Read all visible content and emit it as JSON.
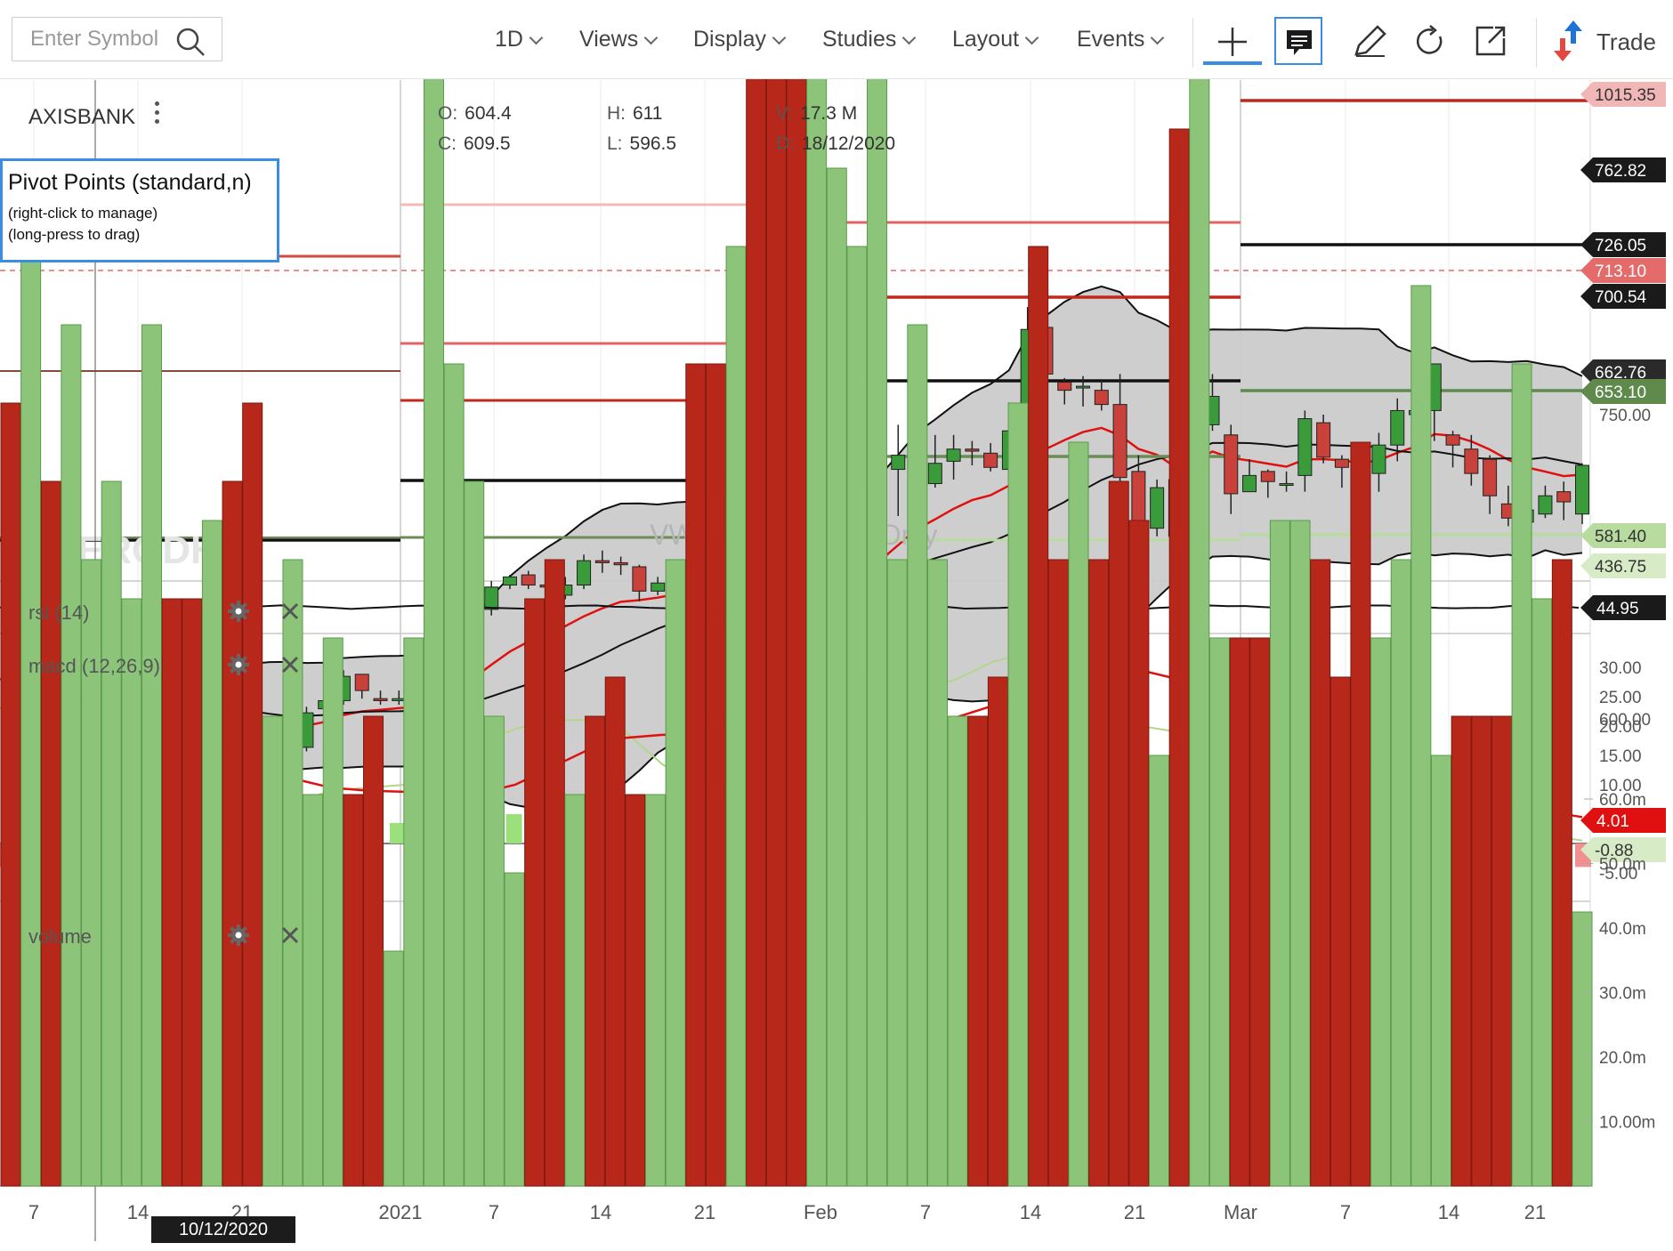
{
  "toolbar": {
    "search_placeholder": "Enter Symbol",
    "menus": [
      "1D",
      "Views",
      "Display",
      "Studies",
      "Layout",
      "Events"
    ],
    "trade_label": "Trade"
  },
  "colors": {
    "up": "#3a9b3a",
    "down": "#c8413a",
    "band_fill": "#cbcbcb",
    "accent_blue": "#1e73d8",
    "vol_up": "#8cc57a",
    "vol_down": "#b8281a"
  },
  "chart_info": {
    "symbol": "AXISBANK",
    "open_label": "O:",
    "open": "604.4",
    "high_label": "H:",
    "high": "611",
    "vol_label": "V:",
    "volume": "17.3 M",
    "close_label": "C:",
    "close": "609.5",
    "low_label": "L:",
    "low": "596.5",
    "date_label": "D:",
    "date": "18/12/2020"
  },
  "pivot_box": {
    "title": "Pivot Points (standard,n)",
    "line1": "(right-click to manage)",
    "line2": "(long-press to drag)"
  },
  "watermark": "ZERODHA",
  "vwap_note": "VWAP is Intraday Only",
  "zoom": {
    "minus": "−",
    "plus": "+"
  },
  "crosshair_date": "10/12/2020",
  "chart_data": {
    "type": "candlestick",
    "price_axis": {
      "ticks": [
        750,
        600
      ],
      "tick_labels": [
        "750.00",
        "600.00"
      ]
    },
    "price_tags": [
      {
        "label": "1015.35",
        "color": "#f1b6b6",
        "text": "#333"
      },
      {
        "label": "762.82",
        "color": "#1a1a1a",
        "text": "#fff"
      },
      {
        "label": "726.05",
        "color": "#1a1a1a",
        "text": "#fff"
      },
      {
        "label": "713.10",
        "color": "#e56a6a",
        "text": "#fff"
      },
      {
        "label": "700.54",
        "color": "#1a1a1a",
        "text": "#fff"
      },
      {
        "label": "662.76",
        "color": "#2a2a2a",
        "text": "#fff"
      },
      {
        "label": "653.10",
        "color": "#5f8a4c",
        "text": "#fff"
      },
      {
        "label": "581.40",
        "color": "#b8dca0",
        "text": "#333"
      },
      {
        "label": "436.75",
        "color": "#d7ecc6",
        "text": "#333"
      }
    ],
    "x_labels": [
      "7",
      "14",
      "21",
      "2021",
      "7",
      "14",
      "21",
      "Feb",
      "7",
      "14",
      "21",
      "Mar",
      "7",
      "14",
      "21"
    ],
    "candles": [
      [
        608,
        604,
        612,
        602
      ],
      [
        604,
        609,
        611,
        600
      ],
      [
        606,
        604,
        609,
        600
      ],
      [
        604,
        609,
        612,
        601
      ],
      [
        609,
        617,
        618,
        606
      ],
      [
        615,
        615,
        617,
        612
      ],
      [
        615,
        605,
        616,
        600
      ],
      [
        607,
        609,
        612,
        605
      ],
      [
        604,
        606,
        609,
        600
      ],
      [
        605,
        601,
        606,
        597
      ],
      [
        601,
        600,
        607,
        598
      ],
      [
        600,
        601,
        602,
        596
      ],
      [
        601,
        593,
        603,
        590
      ],
      [
        593,
        581,
        597,
        575
      ],
      [
        581,
        584,
        587,
        576
      ],
      [
        582,
        585,
        587,
        581
      ],
      [
        586,
        603,
        606,
        584
      ],
      [
        605,
        609,
        614,
        601
      ],
      [
        609,
        621,
        624,
        607
      ],
      [
        622,
        614,
        622,
        610
      ],
      [
        610,
        609,
        614,
        607
      ],
      [
        609,
        610,
        614,
        607
      ],
      [
        610,
        610,
        613,
        606
      ],
      [
        611,
        620,
        621,
        609
      ],
      [
        620,
        648,
        654,
        615
      ],
      [
        644,
        653,
        657,
        643
      ],
      [
        654,
        665,
        668,
        651
      ],
      [
        666,
        670,
        671,
        664
      ],
      [
        671,
        666,
        673,
        664
      ],
      [
        666,
        665,
        670,
        658
      ],
      [
        661,
        666,
        670,
        659
      ],
      [
        666,
        678,
        681,
        664
      ],
      [
        678,
        677,
        683,
        672
      ],
      [
        677,
        676,
        680,
        671
      ],
      [
        675,
        663,
        676,
        658
      ],
      [
        663,
        667,
        670,
        661
      ],
      [
        665,
        671,
        672,
        662
      ],
      [
        670,
        668,
        672,
        663
      ],
      [
        664,
        648,
        669,
        646
      ],
      [
        652,
        655,
        660,
        652
      ],
      [
        657,
        645,
        658,
        640
      ],
      [
        643,
        616,
        647,
        611
      ],
      [
        611,
        661,
        668,
        606
      ],
      [
        660,
        655,
        663,
        652
      ],
      [
        657,
        688,
        695,
        650
      ],
      [
        689,
        690,
        710,
        686
      ],
      [
        692,
        709,
        724,
        690
      ],
      [
        710,
        723,
        725,
        708
      ],
      [
        723,
        730,
        745,
        700
      ],
      [
        732,
        738,
        756,
        703
      ],
      [
        716,
        726,
        740,
        714
      ],
      [
        727,
        733,
        740,
        718
      ],
      [
        733,
        732,
        737,
        725
      ],
      [
        731,
        724,
        736,
        722
      ],
      [
        723,
        742,
        756,
        720
      ],
      [
        740,
        792,
        803,
        735
      ],
      [
        793,
        770,
        798,
        761
      ],
      [
        766,
        762,
        768,
        755
      ],
      [
        764,
        764,
        769,
        754
      ],
      [
        762,
        755,
        767,
        752
      ],
      [
        755,
        719,
        770,
        715
      ],
      [
        722,
        695,
        730,
        692
      ],
      [
        694,
        714,
        718,
        690
      ],
      [
        718,
        690,
        722,
        682
      ],
      [
        700,
        743,
        761,
        696
      ],
      [
        745,
        759,
        770,
        742
      ],
      [
        740,
        711,
        745,
        701
      ],
      [
        712,
        720,
        728,
        712
      ],
      [
        722,
        717,
        723,
        709
      ],
      [
        716,
        716,
        722,
        712
      ],
      [
        720,
        748,
        752,
        712
      ],
      [
        746,
        729,
        750,
        726
      ],
      [
        728,
        724,
        730,
        714
      ],
      [
        727,
        719,
        736,
        711
      ],
      [
        721,
        735,
        741,
        712
      ],
      [
        735,
        752,
        758,
        727
      ],
      [
        750,
        752,
        766,
        747
      ],
      [
        752,
        775,
        775,
        737
      ],
      [
        740,
        735,
        742,
        724
      ],
      [
        733,
        721,
        740,
        715
      ],
      [
        728,
        710,
        730,
        701
      ],
      [
        706,
        699,
        715,
        695
      ],
      [
        697,
        703,
        714,
        689
      ],
      [
        701,
        710,
        715,
        699
      ],
      [
        712,
        707,
        717,
        698
      ],
      [
        701,
        725,
        726,
        696
      ]
    ],
    "volume": {
      "axis_labels": [
        "60.0m",
        "50.0m",
        "40.0m",
        "30.0m",
        "20.0m",
        "10.00m"
      ],
      "axis_values": [
        60,
        50,
        40,
        30,
        20,
        10
      ],
      "values": [
        20,
        25,
        18,
        22,
        16,
        18,
        15,
        22,
        15,
        15,
        17,
        18,
        20,
        12,
        16,
        10,
        14,
        10,
        12,
        6,
        14,
        38,
        21,
        18,
        12,
        8,
        15,
        16,
        10,
        12,
        13,
        10,
        10,
        16,
        21,
        21,
        24,
        64,
        31,
        31,
        29,
        26,
        24,
        31,
        16,
        22,
        16,
        12,
        12,
        13,
        20,
        24,
        16,
        19,
        16,
        18,
        17,
        11,
        27,
        31,
        14,
        14,
        14,
        17,
        17,
        16,
        13,
        19,
        14,
        16,
        23,
        11,
        12,
        12,
        12,
        21,
        15,
        16,
        7
      ]
    },
    "rsi": {
      "label": "rsi (14)",
      "value_label": "44.95"
    },
    "macd": {
      "label": "macd (12,26,9)",
      "axis_labels": [
        "30.00",
        "25.00",
        "20.00",
        "15.00",
        "10.00",
        "-5.00"
      ],
      "axis_values": [
        30,
        25,
        20,
        15,
        10,
        -5
      ],
      "signal_label": "4.01",
      "histogram_label": "-0.88",
      "signal": [
        28,
        26.5,
        25.2,
        24,
        22,
        19,
        16,
        13,
        11,
        9.5,
        9,
        8.8,
        8.6,
        8.5,
        10,
        13,
        16,
        18,
        18.5,
        18.5,
        18.3,
        16.5,
        14,
        13.5,
        15.5,
        18.5,
        21.5,
        23.5,
        25,
        27,
        29,
        29.5,
        28,
        25.5,
        23,
        20,
        17,
        14.5,
        12,
        10,
        8.5,
        7,
        5.5,
        4.5
      ],
      "macd_line": [
        23,
        22,
        20,
        17,
        13,
        9,
        6,
        5,
        7,
        9,
        9.5,
        10,
        14,
        17,
        19.5,
        21,
        21,
        19,
        13.5,
        9.5,
        10,
        14,
        19,
        22,
        25,
        26,
        28,
        31,
        32.5,
        32.5,
        27,
        20,
        19,
        15,
        12,
        10,
        9,
        9,
        8,
        7,
        5.5,
        3.5,
        1.5,
        0.5
      ],
      "histogram": [
        -4,
        -4,
        -3,
        -2,
        -2,
        -3,
        -3,
        -3,
        -5,
        -6,
        -5,
        -3,
        -2,
        -1,
        -0.5,
        -0.2,
        2.5,
        3.5,
        4,
        5,
        5,
        5,
        5,
        5,
        4,
        3,
        0.5,
        0,
        0,
        -0.3,
        -2,
        -3,
        -4,
        -4,
        -3,
        1.5,
        4,
        5.5,
        5.5,
        5.5,
        5,
        4,
        4,
        6,
        6,
        5,
        4,
        1.5,
        -2,
        -5,
        -4,
        -3,
        -4,
        -6,
        -6,
        -4,
        -4,
        -4,
        -3,
        -2,
        -2,
        -3,
        -3,
        -4,
        -4,
        -4,
        -5,
        -4,
        -4
      ],
      "histogram_colors_up": "#9be07a",
      "histogram_colors_down": "#f29090"
    },
    "volume_label": "volume"
  }
}
